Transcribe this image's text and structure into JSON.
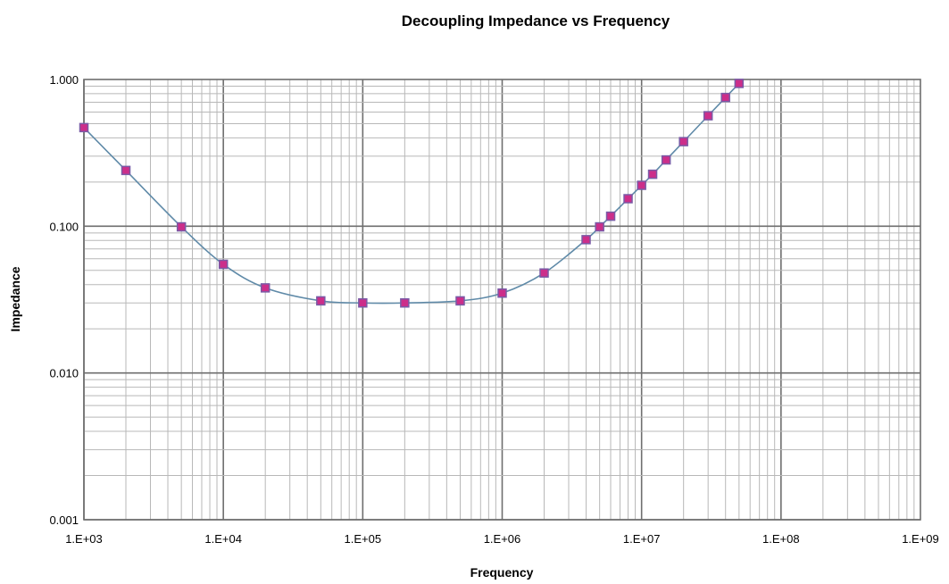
{
  "chart_data": {
    "type": "line",
    "title": "Decoupling Impedance vs Frequency",
    "xlabel": "Frequency",
    "ylabel": "Impedance",
    "x_scale": "log",
    "y_scale": "log",
    "xlim": [
      1000,
      1000000000
    ],
    "ylim": [
      0.001,
      1
    ],
    "x_ticks": [
      1000,
      10000,
      100000,
      1000000,
      10000000,
      100000000,
      1000000000
    ],
    "x_tick_labels": [
      "1.E+03",
      "1.E+04",
      "1.E+05",
      "1.E+06",
      "1.E+07",
      "1.E+08",
      "1.E+09"
    ],
    "y_ticks": [
      0.001,
      0.01,
      0.1,
      1
    ],
    "y_tick_labels": [
      "0.001",
      "0.010",
      "0.100",
      "1.000"
    ],
    "grid": true,
    "legend": "none",
    "series": [
      {
        "line_color": "#5f8aa8",
        "marker": "square",
        "marker_color": "#cc2e8a",
        "marker_edge_color": "#7a5aa6",
        "x": [
          1000,
          2000,
          5000,
          10000,
          20000,
          50000,
          100000,
          200000,
          500000,
          1000000,
          2000000,
          4000000,
          5000000,
          6000000,
          8000000,
          10000000,
          12000000,
          15000000,
          20000000,
          30000000,
          40000000,
          50000000
        ],
        "y": [
          0.47,
          0.24,
          0.099,
          0.055,
          0.038,
          0.031,
          0.03,
          0.03,
          0.031,
          0.035,
          0.048,
          0.081,
          0.099,
          0.117,
          0.154,
          0.19,
          0.226,
          0.283,
          0.377,
          0.566,
          0.754,
          0.94
        ]
      }
    ]
  }
}
